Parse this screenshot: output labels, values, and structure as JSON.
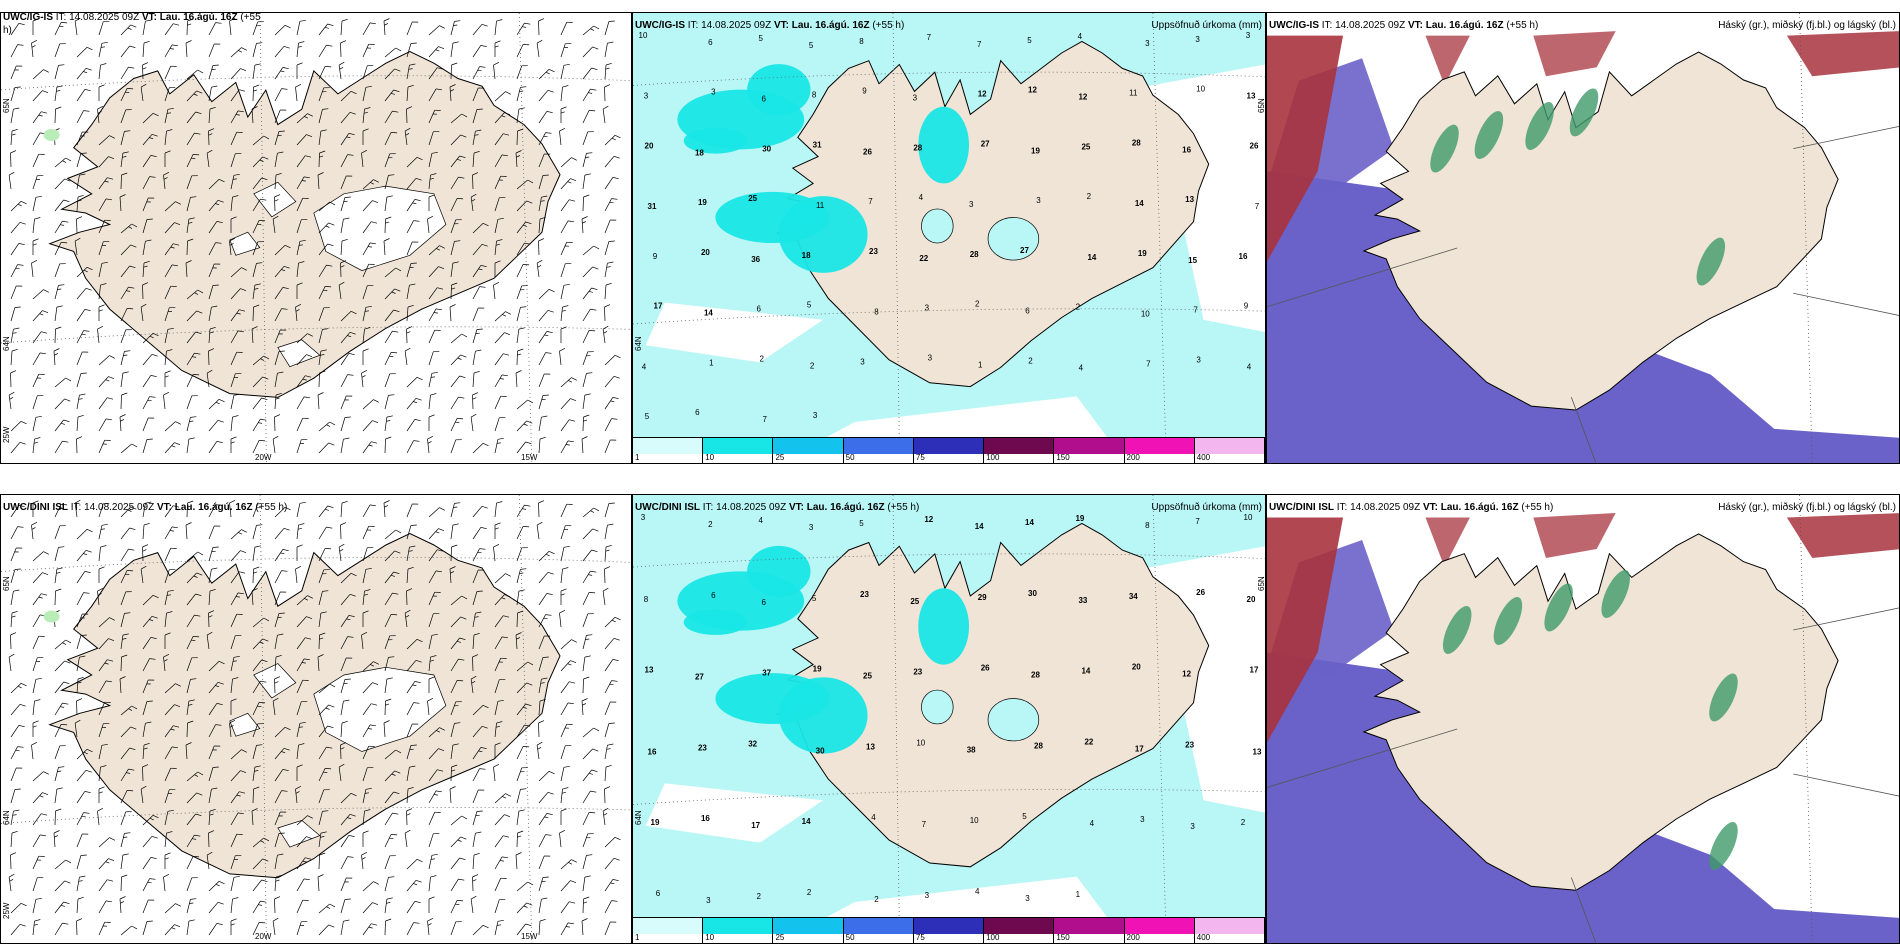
{
  "panels": {
    "r1c1": {
      "source": "UWC/IG-IS",
      "it": "IT: 14.08.2025 09Z",
      "vt": "VT: Lau. 16.ágú. 16Z",
      "lead": "(+55",
      "lead2": "h)",
      "lat_label": "65N",
      "lat_label2": "64N",
      "lon_labels": [
        "25W",
        "20W",
        "15W"
      ]
    },
    "r1c2": {
      "source": "UWC/IG-IS",
      "it": "IT: 14.08.2025 09Z",
      "vt": "VT: Lau. 16.ágú. 16Z",
      "lead": "(+55 h)",
      "product": "Uppsöfnuð úrkoma (mm)",
      "lat_label": "65N",
      "lat_label2": "64N"
    },
    "r1c3": {
      "source": "UWC/IG-IS",
      "it": "IT: 14.08.2025 09Z",
      "vt": "VT: Lau. 16.ágú. 16Z",
      "lead": "(+55 h)",
      "product": "Háský (gr.), miðský (fj.bl.) og lágský (bl.)"
    },
    "r2c1": {
      "source": "UWC/DINI ISL",
      "it": "IT: 14.08.2025 09Z",
      "vt": "VT: Lau. 16.ágú. 16Z",
      "lead": "(+55 h)",
      "lat_label": "65N",
      "lat_label2": "64N",
      "lon_labels": [
        "25W",
        "20W",
        "15W"
      ]
    },
    "r2c2": {
      "source": "UWC/DINI ISL",
      "it": "IT: 14.08.2025 09Z",
      "vt": "VT: Lau. 16.ágú. 16Z",
      "lead": "(+55 h)",
      "product": "Uppsöfnuð úrkoma (mm)",
      "lat_label": "65N",
      "lat_label2": "64N"
    },
    "r2c3": {
      "source": "UWC/DINI ISL",
      "it": "IT: 14.08.2025 09Z",
      "vt": "VT: Lau. 16.ágú. 16Z",
      "lead": "(+55 h)",
      "product": "Háský (gr.), miðský (fj.bl.) og lágský (bl.)"
    }
  },
  "precip_legend": {
    "labels": [
      "1",
      "10",
      "25",
      "50",
      "75",
      "100",
      "150",
      "200",
      "400",
      ""
    ],
    "colors": [
      "#d8fbfb",
      "#18e6e6",
      "#14c2ee",
      "#3b6ee8",
      "#2e2fb8",
      "#6e0950",
      "#b00e8c",
      "#f012b4",
      "#f4b6ee"
    ]
  },
  "precip_values_top": [
    "10",
    "6",
    "5",
    "5",
    "8",
    "7",
    "7",
    "5",
    "4",
    "3",
    "3",
    "3",
    "3",
    "3",
    "6",
    "8",
    "9",
    "3",
    "12",
    "12",
    "12",
    "11",
    "10",
    "13",
    "20",
    "18",
    "30",
    "31",
    "26",
    "28",
    "27",
    "19",
    "25",
    "28",
    "16",
    "26",
    "31",
    "19",
    "25",
    "11",
    "7",
    "4",
    "3",
    "3",
    "2",
    "14",
    "13",
    "7",
    "9",
    "20",
    "36",
    "18",
    "23",
    "22",
    "28",
    "27",
    "14",
    "19",
    "15",
    "16",
    "17",
    "14",
    "6",
    "5",
    "8",
    "3",
    "2",
    "6",
    "2",
    "10",
    "7",
    "9",
    "4",
    "1",
    "2",
    "2",
    "3",
    "3",
    "1",
    "2",
    "4",
    "7",
    "3",
    "4",
    "5",
    "6",
    "7",
    "3"
  ],
  "precip_values_bottom": [
    "3",
    "2",
    "4",
    "3",
    "5",
    "12",
    "14",
    "14",
    "19",
    "8",
    "7",
    "10",
    "8",
    "6",
    "6",
    "5",
    "23",
    "25",
    "29",
    "30",
    "33",
    "34",
    "26",
    "20",
    "13",
    "27",
    "37",
    "19",
    "25",
    "23",
    "26",
    "28",
    "14",
    "20",
    "12",
    "17",
    "16",
    "23",
    "32",
    "30",
    "13",
    "10",
    "38",
    "28",
    "22",
    "17",
    "23",
    "13",
    "19",
    "16",
    "17",
    "14",
    "4",
    "7",
    "10",
    "5",
    "4",
    "3",
    "3",
    "2",
    "6",
    "3",
    "2",
    "2",
    "2",
    "3",
    "4",
    "3",
    "1"
  ],
  "cloud_legend_note": "",
  "colors": {
    "land": "#efe4d6",
    "sea_cloud": "#6a62c8",
    "high_cloud": "#a8333d",
    "mid_cloud": "#3f9a6a",
    "precip_light": "#b9f6f6",
    "precip_mid": "#19e6e6",
    "border": "#000000"
  }
}
